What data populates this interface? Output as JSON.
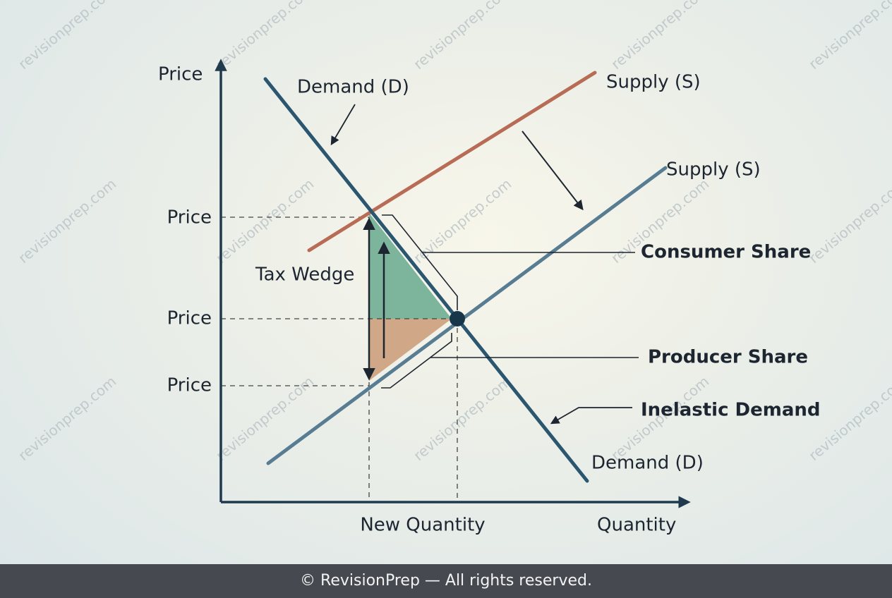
{
  "diagram": {
    "axes": {
      "y_label": "Price",
      "x_label": "Quantity"
    },
    "curves": {
      "demand_top": "Demand (D)",
      "demand_bottom": "Demand (D)",
      "supply_old": "Supply (S)",
      "supply_new": "Supply (S)"
    },
    "price_levels": [
      "Price",
      "Price",
      "Price"
    ],
    "new_quantity": "New Quantity",
    "annotations": {
      "tax_wedge": "Tax Wedge",
      "consumer_share": "Consumer Share",
      "producer_share": "Producer Share",
      "inelastic_demand": "Inelastic Demand"
    },
    "watermark": "revisionprep.com"
  },
  "footer": {
    "text": "© RevisionPrep — All rights reserved."
  }
}
